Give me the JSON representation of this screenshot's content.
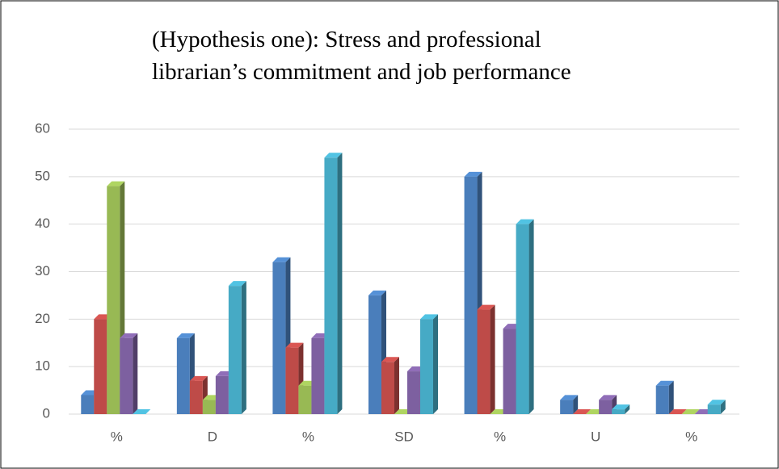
{
  "chart_data": {
    "type": "bar3d",
    "title": [
      "(Hypothesis one): Stress and professional",
      "librarian’s commitment and job performance"
    ],
    "categories": [
      "%",
      "D",
      "%",
      "SD",
      "%",
      "U",
      "%"
    ],
    "series": [
      {
        "color": "#4a7ebb",
        "values": [
          4,
          16,
          32,
          25,
          50,
          3,
          6
        ]
      },
      {
        "color": "#be4b48",
        "values": [
          20,
          7,
          14,
          11,
          22,
          0,
          0
        ]
      },
      {
        "color": "#98b954",
        "values": [
          48,
          3,
          6,
          0,
          0,
          0,
          0
        ]
      },
      {
        "color": "#7d60a0",
        "values": [
          16,
          8,
          16,
          9,
          18,
          3,
          0
        ]
      },
      {
        "color": "#46aac5",
        "values": [
          0,
          27,
          54,
          20,
          40,
          1,
          2
        ]
      }
    ],
    "ylim": [
      0,
      60
    ],
    "yticks": [
      0,
      10,
      20,
      30,
      40,
      50,
      60
    ],
    "grid": true
  }
}
